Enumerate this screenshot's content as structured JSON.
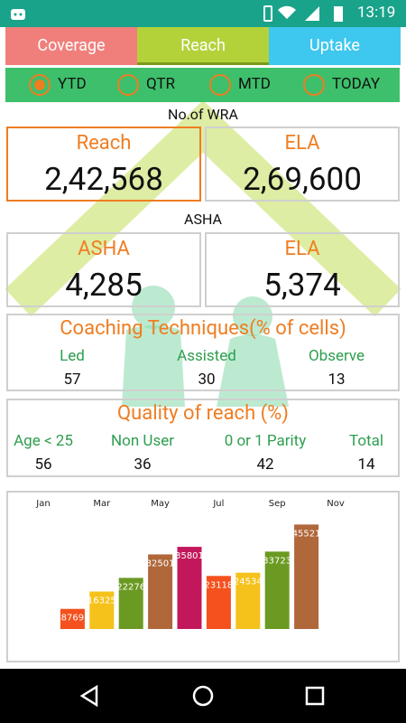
{
  "status_bar": {
    "time": "13:19"
  },
  "tabs": {
    "labels": [
      "Coverage",
      "Reach",
      "Uptake"
    ],
    "selected": 1
  },
  "periods": {
    "options": [
      "YTD",
      "QTR",
      "MTD",
      "TODAY"
    ],
    "selected": 0
  },
  "wra": {
    "title": "No.of WRA",
    "selected": 0,
    "cards": [
      {
        "label": "Reach",
        "value": "2,42,568"
      },
      {
        "label": "ELA",
        "value": "2,69,600"
      }
    ]
  },
  "asha": {
    "title": "ASHA",
    "cards": [
      {
        "label": "ASHA",
        "value": "4,285"
      },
      {
        "label": "ELA",
        "value": "5,374"
      }
    ]
  },
  "coaching": {
    "title": "Coaching Techniques(% of cells)",
    "columns": [
      {
        "label": "Led",
        "value": 57
      },
      {
        "label": "Assisted",
        "value": 30
      },
      {
        "label": "Observe",
        "value": 13
      }
    ]
  },
  "quality": {
    "title": "Quality of reach (%)",
    "columns": [
      {
        "label": "Age < 25",
        "value": 56
      },
      {
        "label": "Non User",
        "value": 36
      },
      {
        "label": "0 or 1 Parity",
        "value": 42
      },
      {
        "label": "Total",
        "value": 14
      }
    ]
  },
  "chart_data": {
    "type": "bar",
    "categories": [
      "Jan",
      null,
      "Mar",
      null,
      "May",
      null,
      "Jul",
      null,
      "Sep",
      null,
      "Nov"
    ],
    "values": [
      null,
      8769,
      16325,
      22276,
      32501,
      35801,
      23118,
      24534,
      33723,
      45521,
      null
    ],
    "colors": [
      null,
      "#f4511e",
      "#f5c21b",
      "#6b9a23",
      "#b0673a",
      "#c2185b",
      "#f4511e",
      "#f5c21b",
      "#6b9a23",
      "#b0673a",
      null
    ],
    "ylim": [
      0,
      50000
    ]
  }
}
